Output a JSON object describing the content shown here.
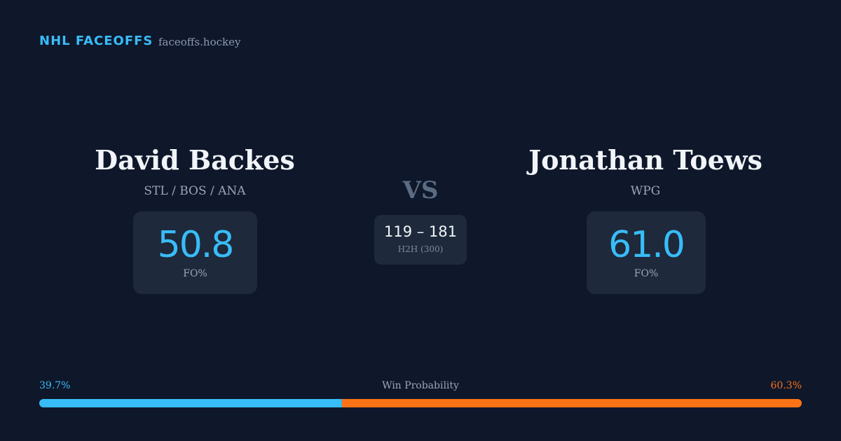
{
  "header": {
    "brand": "NHL FACEOFFS",
    "site": "faceoffs.hockey"
  },
  "players": [
    {
      "name": "David Backes",
      "teams": "STL / BOS / ANA",
      "fo_pct": "50.8",
      "fo_label": "FO%"
    },
    {
      "name": "Jonathan Toews",
      "teams": "WPG",
      "fo_pct": "61.0",
      "fo_label": "FO%"
    }
  ],
  "versus": "VS",
  "h2h": {
    "score": "119 – 181",
    "label": "H2H (300)"
  },
  "win_probability": {
    "label": "Win Probability",
    "left": {
      "value": 39.7,
      "label": "39.7%",
      "color": "#38bdf8"
    },
    "right": {
      "value": 60.3,
      "label": "60.3%",
      "color": "#f97316"
    }
  }
}
